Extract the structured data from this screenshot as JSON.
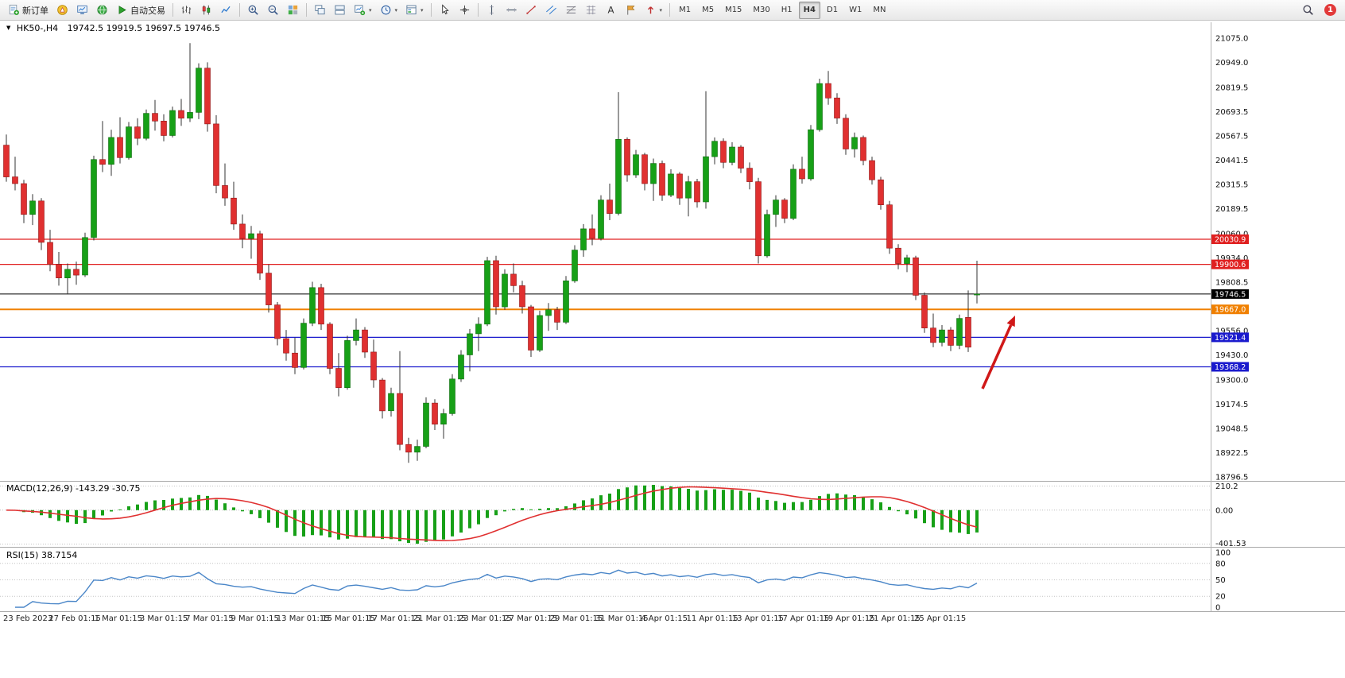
{
  "toolbar": {
    "items": [
      {
        "name": "new-order-button",
        "icon": "neworder",
        "label": "新订单"
      },
      {
        "name": "mql-wizard-button",
        "icon": "compass"
      },
      {
        "name": "data-window-button",
        "icon": "monitor"
      },
      {
        "name": "market-watch-button",
        "icon": "globe"
      },
      {
        "name": "auto-trading-button",
        "icon": "play",
        "label": "自动交易"
      },
      {
        "sep": true
      },
      {
        "name": "bar-chart-button",
        "icon": "ohlc"
      },
      {
        "name": "candlestick-chart-button",
        "icon": "candles"
      },
      {
        "name": "line-chart-button",
        "icon": "linechart"
      },
      {
        "sep": true
      },
      {
        "name": "zoom-in-button",
        "icon": "zoomin"
      },
      {
        "name": "zoom-out-button",
        "icon": "zoomout"
      },
      {
        "name": "tile-windows-button",
        "icon": "tile"
      },
      {
        "sep": true
      },
      {
        "name": "cascade-windows-button",
        "icon": "cascade"
      },
      {
        "name": "arrange-windows-button",
        "icon": "arrange"
      },
      {
        "name": "new-chart-button",
        "icon": "newchart",
        "caret": true
      },
      {
        "name": "period-selector-button",
        "icon": "clock",
        "caret": true
      },
      {
        "name": "template-button",
        "icon": "template",
        "caret": true
      },
      {
        "sep": true
      },
      {
        "name": "cursor-button",
        "icon": "cursor"
      },
      {
        "name": "crosshair-button",
        "icon": "crosshair"
      },
      {
        "sep": true
      },
      {
        "name": "vertical-line-button",
        "icon": "vline"
      },
      {
        "name": "horizontal-line-button",
        "icon": "hline"
      },
      {
        "name": "trendline-button",
        "icon": "trend"
      },
      {
        "name": "equidistant-channel-button",
        "icon": "channel"
      },
      {
        "name": "fibonacci-button",
        "icon": "fibo"
      },
      {
        "name": "grid-button",
        "icon": "hatch"
      },
      {
        "name": "text-button",
        "icon": "textA"
      },
      {
        "name": "text-label-button",
        "icon": "label"
      },
      {
        "name": "shapes-button",
        "icon": "arrowsym",
        "caret": true
      },
      {
        "sep": true
      }
    ],
    "timeframes": [
      "M1",
      "M5",
      "M15",
      "M30",
      "H1",
      "H4",
      "D1",
      "W1",
      "MN"
    ],
    "active_timeframe": "H4",
    "badge_count": "1"
  },
  "window": {
    "marker": "▼",
    "title": "HK50-,H4",
    "quote": "19742.5 19919.5 19697.5 19746.5"
  },
  "chart_data": {
    "type": "candlestick",
    "symbol": "HK50-",
    "timeframe": "H4",
    "current_bar": {
      "open": 19742.5,
      "high": 19919.5,
      "low": 19697.5,
      "close": 19746.5
    },
    "y_axis_range": [
      18780,
      21150
    ],
    "y_axis_labels": [
      "21075.0",
      "20949.0",
      "20819.5",
      "20693.5",
      "20567.5",
      "20441.5",
      "20315.5",
      "20189.5",
      "20060.0",
      "19934.0",
      "19808.5",
      "19556.0",
      "19430.0",
      "19300.0",
      "19174.5",
      "19048.5",
      "18922.5",
      "18796.5"
    ],
    "x_labels": [
      "23 Feb 2023",
      "27 Feb 01:15",
      "1 Mar 01:15",
      "3 Mar 01:15",
      "7 Mar 01:15",
      "9 Mar 01:15",
      "13 Mar 01:15",
      "15 Mar 01:15",
      "17 Mar 01:15",
      "21 Mar 01:15",
      "23 Mar 01:15",
      "27 Mar 01:15",
      "29 Mar 01:15",
      "31 Mar 01:15",
      "4 Apr 01:15",
      "11 Apr 01:15",
      "13 Apr 01:15",
      "17 Apr 01:15",
      "19 Apr 01:15",
      "21 Apr 01:15",
      "25 Apr 01:15"
    ],
    "horizontal_lines": [
      {
        "label": "20030.9",
        "price": 20030.9,
        "color": "#e02020",
        "width": 1.2
      },
      {
        "label": "19900.6",
        "price": 19900.6,
        "color": "#e02020",
        "width": 1.2
      },
      {
        "label": "19746.5",
        "price": 19746.5,
        "color": "#000000",
        "width": 1,
        "role": "current-price"
      },
      {
        "label": "19667.0",
        "price": 19667.0,
        "color": "#f08000",
        "width": 2
      },
      {
        "label": "19521.4",
        "price": 19521.4,
        "color": "#1a1acd",
        "width": 1.3
      },
      {
        "label": "19368.2",
        "price": 19368.2,
        "color": "#1a1acd",
        "width": 1.3
      }
    ],
    "annotation_arrow": {
      "from": [
        1236,
        489
      ],
      "to": [
        1277,
        397
      ],
      "color": "#d01818"
    },
    "indicators": [
      {
        "type": "MACD",
        "params": [
          12,
          26,
          9
        ],
        "display": "MACD(12,26,9) -143.29 -30.75",
        "main": -143.29,
        "signal": -30.75,
        "axis_labels": [
          "210.2",
          "0.00",
          "-401.53"
        ]
      },
      {
        "type": "RSI",
        "params": [
          15
        ],
        "display": "RSI(15) 38.7154",
        "value": 38.7154,
        "axis_labels": [
          "100",
          "80",
          "50",
          "20",
          "0"
        ],
        "levels": [
          80,
          50,
          20
        ]
      }
    ],
    "colors": {
      "bull": "#17a017",
      "bear": "#e03030",
      "wick": "#333333",
      "macd_hist": "#17a017",
      "macd_signal": "#e03030",
      "rsi_line": "#4a86c8"
    },
    "ohlc": [
      [
        20520,
        20575,
        20330,
        20355
      ],
      [
        20355,
        20460,
        20285,
        20320
      ],
      [
        20320,
        20340,
        20115,
        20160
      ],
      [
        20160,
        20265,
        20105,
        20230
      ],
      [
        20230,
        20245,
        19975,
        20015
      ],
      [
        20015,
        20080,
        19865,
        19900
      ],
      [
        19900,
        19965,
        19790,
        19830
      ],
      [
        19830,
        19905,
        19745,
        19875
      ],
      [
        19875,
        19915,
        19795,
        19845
      ],
      [
        19845,
        20065,
        19835,
        20040
      ],
      [
        20040,
        20465,
        20025,
        20445
      ],
      [
        20445,
        20645,
        20380,
        20420
      ],
      [
        20420,
        20600,
        20360,
        20560
      ],
      [
        20560,
        20665,
        20425,
        20455
      ],
      [
        20455,
        20640,
        20445,
        20615
      ],
      [
        20615,
        20660,
        20520,
        20555
      ],
      [
        20555,
        20705,
        20545,
        20685
      ],
      [
        20685,
        20755,
        20595,
        20645
      ],
      [
        20645,
        20680,
        20540,
        20570
      ],
      [
        20570,
        20720,
        20560,
        20700
      ],
      [
        20700,
        20760,
        20620,
        20660
      ],
      [
        20660,
        21050,
        20640,
        20690
      ],
      [
        20690,
        20945,
        20655,
        20920
      ],
      [
        20920,
        20950,
        20590,
        20630
      ],
      [
        20630,
        20675,
        20270,
        20310
      ],
      [
        20310,
        20425,
        20205,
        20245
      ],
      [
        20245,
        20330,
        20080,
        20110
      ],
      [
        20110,
        20160,
        19985,
        20035
      ],
      [
        20035,
        20100,
        19930,
        20060
      ],
      [
        20060,
        20075,
        19820,
        19855
      ],
      [
        19855,
        19900,
        19650,
        19690
      ],
      [
        19690,
        19705,
        19480,
        19515
      ],
      [
        19515,
        19560,
        19400,
        19440
      ],
      [
        19440,
        19520,
        19330,
        19365
      ],
      [
        19365,
        19620,
        19355,
        19595
      ],
      [
        19595,
        19810,
        19580,
        19780
      ],
      [
        19780,
        19800,
        19560,
        19590
      ],
      [
        19590,
        19600,
        19330,
        19360
      ],
      [
        19360,
        19440,
        19215,
        19260
      ],
      [
        19260,
        19530,
        19250,
        19505
      ],
      [
        19505,
        19620,
        19480,
        19560
      ],
      [
        19560,
        19575,
        19415,
        19445
      ],
      [
        19445,
        19510,
        19260,
        19300
      ],
      [
        19300,
        19310,
        19100,
        19140
      ],
      [
        19140,
        19260,
        19110,
        19230
      ],
      [
        19230,
        19450,
        18935,
        18965
      ],
      [
        18965,
        19000,
        18870,
        18925
      ],
      [
        18925,
        18990,
        18880,
        18955
      ],
      [
        18955,
        19210,
        18945,
        19180
      ],
      [
        19180,
        19200,
        19040,
        19070
      ],
      [
        19070,
        19150,
        18995,
        19125
      ],
      [
        19125,
        19330,
        19115,
        19305
      ],
      [
        19305,
        19455,
        19290,
        19430
      ],
      [
        19430,
        19565,
        19345,
        19540
      ],
      [
        19540,
        19625,
        19450,
        19590
      ],
      [
        19590,
        19940,
        19580,
        19920
      ],
      [
        19920,
        19945,
        19640,
        19680
      ],
      [
        19680,
        19875,
        19665,
        19850
      ],
      [
        19850,
        19905,
        19755,
        19790
      ],
      [
        19790,
        19815,
        19645,
        19680
      ],
      [
        19680,
        19690,
        19420,
        19455
      ],
      [
        19455,
        19660,
        19445,
        19635
      ],
      [
        19635,
        19700,
        19555,
        19665
      ],
      [
        19665,
        19680,
        19560,
        19600
      ],
      [
        19600,
        19840,
        19590,
        19815
      ],
      [
        19815,
        20000,
        19805,
        19975
      ],
      [
        19975,
        20110,
        19940,
        20085
      ],
      [
        20085,
        20160,
        20000,
        20035
      ],
      [
        20035,
        20260,
        20025,
        20235
      ],
      [
        20235,
        20320,
        20130,
        20165
      ],
      [
        20165,
        20795,
        20155,
        20550
      ],
      [
        20550,
        20560,
        20330,
        20365
      ],
      [
        20365,
        20495,
        20350,
        20470
      ],
      [
        20470,
        20480,
        20285,
        20320
      ],
      [
        20320,
        20450,
        20230,
        20425
      ],
      [
        20425,
        20440,
        20230,
        20260
      ],
      [
        20260,
        20395,
        20250,
        20370
      ],
      [
        20370,
        20380,
        20210,
        20245
      ],
      [
        20245,
        20360,
        20150,
        20330
      ],
      [
        20330,
        20345,
        20195,
        20225
      ],
      [
        20225,
        20800,
        20190,
        20460
      ],
      [
        20460,
        20560,
        20420,
        20540
      ],
      [
        20540,
        20555,
        20400,
        20430
      ],
      [
        20430,
        20535,
        20415,
        20510
      ],
      [
        20510,
        20520,
        20375,
        20400
      ],
      [
        20400,
        20430,
        20290,
        20330
      ],
      [
        20330,
        20350,
        19905,
        19945
      ],
      [
        19945,
        20185,
        19935,
        20160
      ],
      [
        20160,
        20260,
        20095,
        20235
      ],
      [
        20235,
        20245,
        20115,
        20140
      ],
      [
        20140,
        20420,
        20130,
        20395
      ],
      [
        20395,
        20460,
        20320,
        20345
      ],
      [
        20345,
        20625,
        20335,
        20600
      ],
      [
        20600,
        20865,
        20590,
        20840
      ],
      [
        20840,
        20905,
        20730,
        20765
      ],
      [
        20765,
        20790,
        20630,
        20660
      ],
      [
        20660,
        20680,
        20470,
        20500
      ],
      [
        20500,
        20585,
        20455,
        20560
      ],
      [
        20560,
        20570,
        20415,
        20440
      ],
      [
        20440,
        20460,
        20315,
        20340
      ],
      [
        20340,
        20355,
        20185,
        20210
      ],
      [
        20210,
        20230,
        19955,
        19985
      ],
      [
        19985,
        20005,
        19875,
        19905
      ],
      [
        19905,
        19950,
        19860,
        19935
      ],
      [
        19935,
        19945,
        19715,
        19740
      ],
      [
        19740,
        19755,
        19545,
        19570
      ],
      [
        19570,
        19645,
        19470,
        19495
      ],
      [
        19495,
        19585,
        19475,
        19560
      ],
      [
        19560,
        19575,
        19450,
        19480
      ],
      [
        19480,
        19640,
        19460,
        19620
      ],
      [
        19625,
        19765,
        19445,
        19470
      ],
      [
        19742.5,
        19919.5,
        19697.5,
        19746.5
      ]
    ]
  }
}
